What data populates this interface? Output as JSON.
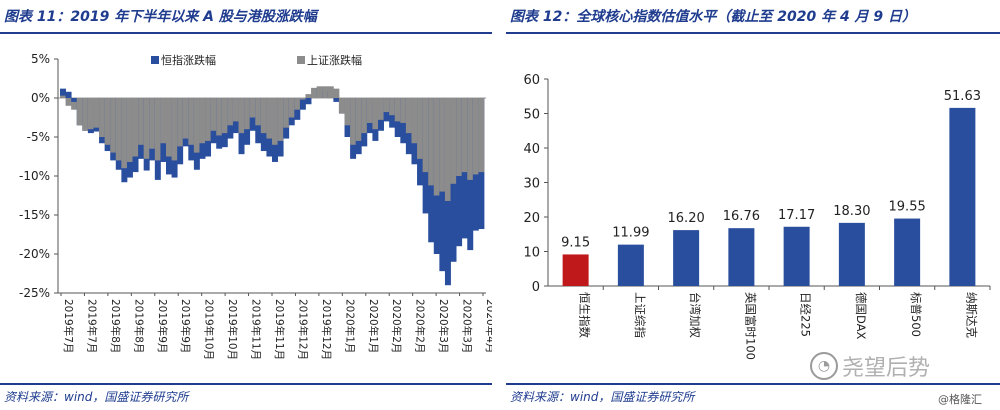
{
  "left": {
    "title": "图表 11：2019 年下半年以来 A 股与港股涨跌幅",
    "source": "资料来源：wind，国盛证券研究所"
  },
  "right": {
    "title": "图表 12：全球核心指数估值水平（截止至 2020 年 4 月 9 日）",
    "source": "资料来源：wind，国盛证券研究所"
  },
  "watermark": {
    "icon": "wechat-icon",
    "text": "尧望后势",
    "small": "@格隆汇"
  },
  "colors": {
    "blue": "#2a4e9e",
    "gray": "#8c8c8c",
    "red": "#c0191c",
    "title": "#1f3c8f"
  },
  "chart_data": [
    {
      "type": "area",
      "title": "",
      "legend": [
        "恒指涨跌幅",
        "上证涨跌幅"
      ],
      "legend_position": "top",
      "ylim": [
        -25,
        5
      ],
      "yticks": [
        "5%",
        "0%",
        "-5%",
        "-10%",
        "-15%",
        "-20%",
        "-25%"
      ],
      "x_tick_labels": [
        "2019年7月",
        "2019年7月",
        "2019年8月",
        "2019年8月",
        "2019年9月",
        "2019年9月",
        "2019年10月",
        "2019年10月",
        "2019年11月",
        "2019年11月",
        "2019年12月",
        "2019年12月",
        "2020年1月",
        "2020年1月",
        "2020年2月",
        "2020年2月",
        "2020年3月",
        "2020年3月",
        "2020年4月"
      ],
      "series": [
        {
          "name": "恒指涨跌幅",
          "values": [
            1.2,
            0.8,
            -0.5,
            -3.5,
            -4.2,
            -4.5,
            -4.3,
            -5.8,
            -6.8,
            -8.0,
            -9.2,
            -10.8,
            -10.2,
            -9.5,
            -7.8,
            -9.3,
            -8.0,
            -10.5,
            -8.2,
            -9.8,
            -10.2,
            -8.5,
            -6.2,
            -8.0,
            -9.2,
            -7.8,
            -7.5,
            -5.8,
            -6.5,
            -6.3,
            -5.2,
            -4.5,
            -7.2,
            -6.0,
            -4.2,
            -5.8,
            -6.8,
            -7.5,
            -8.2,
            -7.5,
            -5.2,
            -3.5,
            -2.8,
            -1.5,
            -0.8,
            0.3,
            1.2,
            1.0,
            0.8,
            -0.5,
            -2.0,
            -5.0,
            -7.8,
            -7.2,
            -6.2,
            -4.5,
            -5.5,
            -4.2,
            -3.0,
            -3.8,
            -5.0,
            -5.8,
            -7.2,
            -8.5,
            -11.2,
            -14.8,
            -18.5,
            -20.0,
            -22.2,
            -24.0,
            -21.0,
            -19.0,
            -18.0,
            -19.5,
            -17.0,
            -16.8
          ]
        },
        {
          "name": "上证涨跌幅",
          "values": [
            0.3,
            -1.0,
            -1.5,
            -3.5,
            -4.2,
            -4.0,
            -3.8,
            -5.0,
            -6.0,
            -7.0,
            -8.0,
            -9.0,
            -8.2,
            -7.5,
            -6.0,
            -7.8,
            -6.5,
            -8.0,
            -5.8,
            -7.5,
            -8.0,
            -6.2,
            -5.2,
            -6.0,
            -7.0,
            -5.8,
            -5.5,
            -4.2,
            -4.8,
            -4.5,
            -3.5,
            -3.0,
            -4.5,
            -4.0,
            -2.5,
            -3.5,
            -4.5,
            -5.2,
            -6.0,
            -5.5,
            -3.8,
            -2.5,
            -1.5,
            -0.2,
            0.5,
            1.3,
            1.5,
            1.5,
            1.5,
            1.2,
            -2.0,
            -3.5,
            -6.0,
            -5.5,
            -4.5,
            -3.2,
            -4.0,
            -2.8,
            -1.8,
            -2.2,
            -3.0,
            -3.2,
            -4.5,
            -5.8,
            -7.8,
            -9.5,
            -11.2,
            -12.5,
            -12.0,
            -13.2,
            -11.0,
            -10.0,
            -9.5,
            -10.5,
            -9.8,
            -9.5
          ]
        }
      ]
    },
    {
      "type": "bar",
      "title": "",
      "categories": [
        "恒生指数",
        "上证综指",
        "台湾加权",
        "英国富时100",
        "日经225",
        "德国DAX",
        "标普500",
        "纳斯达克"
      ],
      "values": [
        9.15,
        11.99,
        16.2,
        16.76,
        17.17,
        18.3,
        19.55,
        51.63
      ],
      "value_labels": [
        "9.15",
        "11.99",
        "16.20",
        "16.76",
        "17.17",
        "18.30",
        "19.55",
        "51.63"
      ],
      "highlight_index": 0,
      "ylim": [
        0,
        60
      ],
      "yticks": [
        "0",
        "10",
        "20",
        "30",
        "40",
        "50",
        "60"
      ]
    }
  ]
}
